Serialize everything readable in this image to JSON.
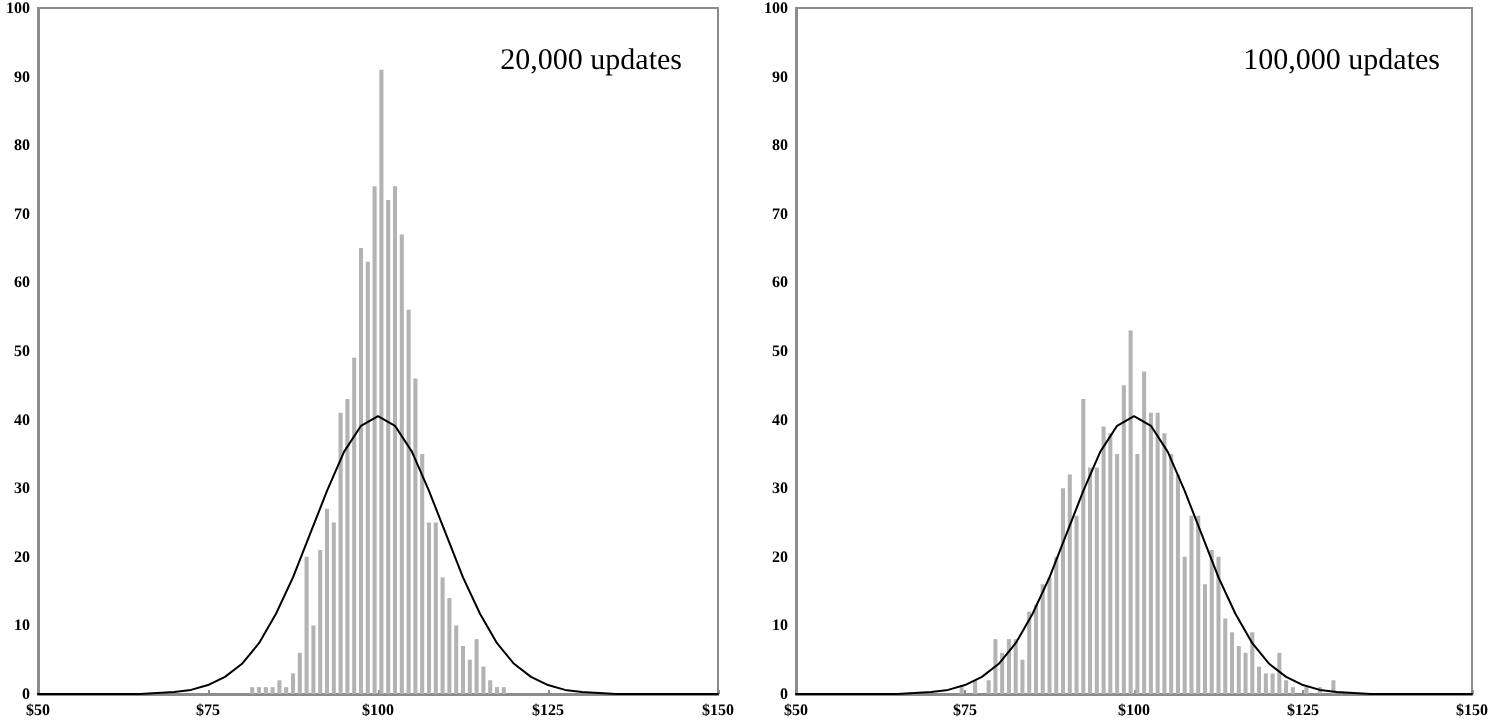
{
  "chart_data": [
    {
      "type": "histogram",
      "title": "20,000 updates",
      "color": "#b3b3b3",
      "bins": [
        81,
        82,
        83,
        84,
        85,
        86,
        87,
        88,
        89,
        90,
        91,
        92,
        93,
        94,
        95,
        96,
        97,
        98,
        99,
        100,
        101,
        102,
        103,
        104,
        105,
        106,
        107,
        108,
        109,
        110,
        111,
        112,
        113,
        114,
        115,
        116,
        117,
        118,
        119
      ],
      "values": [
        1,
        1,
        1,
        1,
        2,
        1,
        3,
        6,
        20,
        10,
        21,
        27,
        25,
        41,
        43,
        49,
        65,
        63,
        74,
        91,
        72,
        74,
        67,
        56,
        46,
        35,
        25,
        25,
        17,
        14,
        10,
        7,
        5,
        8,
        4,
        2,
        1,
        1
      ],
      "series": [
        {
          "type": "line",
          "color": "#000000",
          "x": [
            50,
            60,
            65,
            70,
            72.5,
            75,
            77.5,
            80,
            82.5,
            85,
            87.5,
            90,
            92.5,
            95,
            97.5,
            100,
            102.5,
            105,
            107.5,
            110,
            112.5,
            115,
            117.5,
            120,
            122.5,
            125,
            127.5,
            130,
            135,
            140,
            150
          ],
          "values": [
            0,
            0,
            0,
            0.3,
            0.6,
            1.3,
            2.5,
            4.4,
            7.4,
            11.7,
            17,
            23.3,
            29.6,
            35.3,
            39.1,
            40.5,
            39.1,
            35.3,
            29.6,
            23.3,
            17,
            11.7,
            7.4,
            4.4,
            2.5,
            1.3,
            0.6,
            0.3,
            0,
            0,
            0
          ]
        }
      ],
      "xlim": [
        50,
        150
      ],
      "xticks": [
        {
          "value": 50,
          "label": "$50"
        },
        {
          "value": 75,
          "label": "$75"
        },
        {
          "value": 100,
          "label": "$100"
        },
        {
          "value": 125,
          "label": "$125"
        },
        {
          "value": 150,
          "label": "$150"
        }
      ],
      "ylim": [
        0,
        100
      ],
      "yticks": [
        0,
        10,
        20,
        30,
        40,
        50,
        60,
        70,
        80,
        90,
        100
      ],
      "grid": false
    },
    {
      "type": "histogram",
      "title": "100,000 updates",
      "color": "#b3b3b3",
      "bins": [
        74,
        75,
        76,
        77,
        78,
        79,
        80,
        81,
        82,
        83,
        84,
        85,
        86,
        87,
        88,
        89,
        90,
        91,
        92,
        93,
        94,
        95,
        96,
        97,
        98,
        99,
        100,
        101,
        102,
        103,
        104,
        105,
        106,
        107,
        108,
        109,
        110,
        111,
        112,
        113,
        114,
        115,
        116,
        117,
        118,
        119,
        120,
        121,
        122,
        123,
        124,
        125,
        126,
        127,
        128,
        129,
        130
      ],
      "values": [
        1,
        0,
        2,
        0,
        2,
        8,
        6,
        8,
        8,
        5,
        12,
        13,
        16,
        17,
        20,
        30,
        32,
        26,
        43,
        33,
        33,
        39,
        38,
        35,
        45,
        53,
        35,
        47,
        41,
        41,
        38,
        35,
        32,
        20,
        26,
        26,
        16,
        21,
        20,
        11,
        9,
        7,
        6,
        9,
        4,
        3,
        3,
        6,
        2,
        1,
        0,
        1,
        0,
        1,
        0,
        2
      ],
      "series": [
        {
          "type": "line",
          "color": "#000000",
          "x": [
            50,
            60,
            65,
            70,
            72.5,
            75,
            77.5,
            80,
            82.5,
            85,
            87.5,
            90,
            92.5,
            95,
            97.5,
            100,
            102.5,
            105,
            107.5,
            110,
            112.5,
            115,
            117.5,
            120,
            122.5,
            125,
            127.5,
            130,
            135,
            140,
            150
          ],
          "values": [
            0,
            0,
            0,
            0.3,
            0.6,
            1.3,
            2.5,
            4.4,
            7.4,
            11.7,
            17,
            23.3,
            29.6,
            35.3,
            39.1,
            40.5,
            39.1,
            35.3,
            29.6,
            23.3,
            17,
            11.7,
            7.4,
            4.4,
            2.5,
            1.3,
            0.6,
            0.3,
            0,
            0,
            0
          ]
        }
      ],
      "xlim": [
        50,
        150
      ],
      "xticks": [
        {
          "value": 50,
          "label": "$50"
        },
        {
          "value": 75,
          "label": "$75"
        },
        {
          "value": 100,
          "label": "$100"
        },
        {
          "value": 125,
          "label": "$125"
        },
        {
          "value": 150,
          "label": "$150"
        }
      ],
      "ylim": [
        0,
        100
      ],
      "yticks": [
        0,
        10,
        20,
        30,
        40,
        50,
        60,
        70,
        80,
        90,
        100
      ],
      "grid": false
    }
  ]
}
